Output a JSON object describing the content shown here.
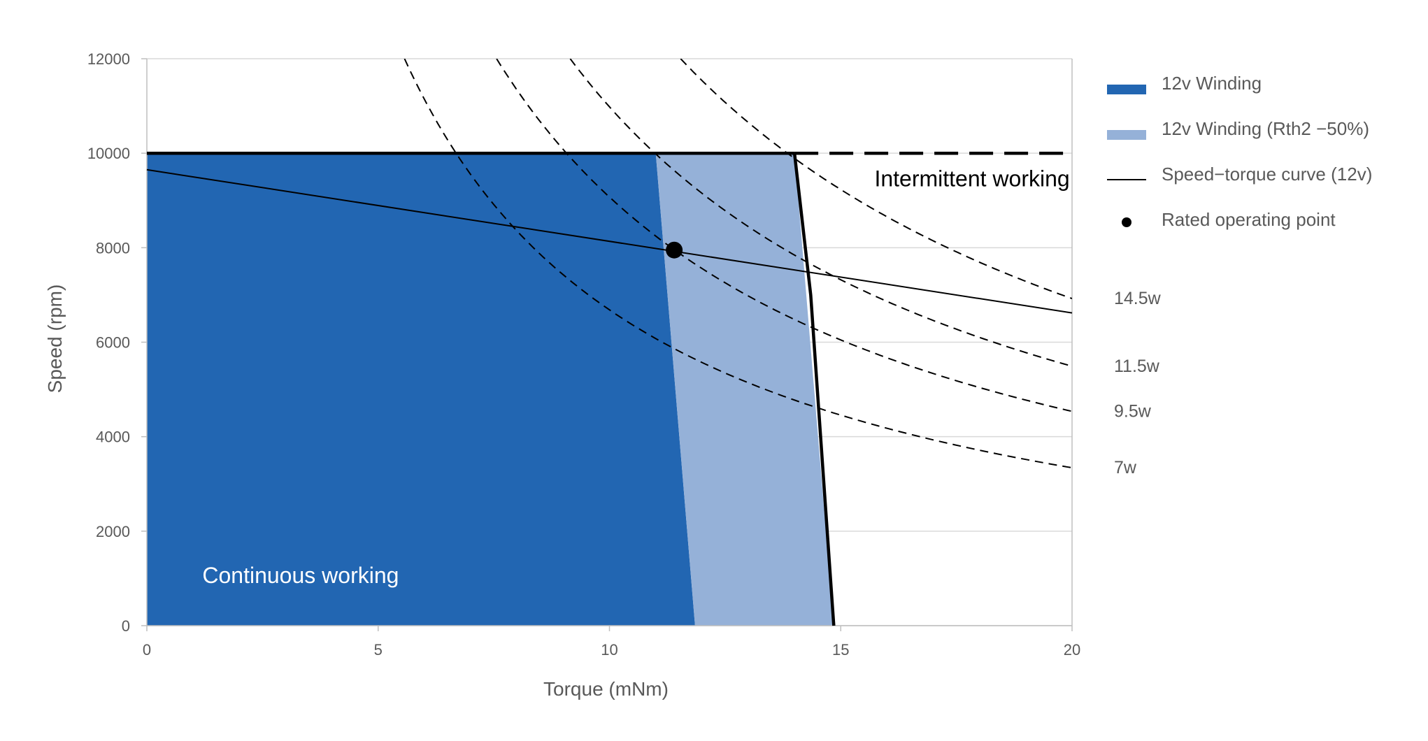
{
  "chart_data": {
    "type": "area",
    "xlabel": "Torque (mNm)",
    "ylabel": "Speed (rpm)",
    "xlim": [
      0,
      20
    ],
    "ylim": [
      0,
      12000
    ],
    "x_ticks": [
      0,
      5,
      10,
      15,
      20
    ],
    "y_ticks": [
      0,
      2000,
      4000,
      6000,
      8000,
      10000,
      12000
    ],
    "grid": "horizontal",
    "legend_position": "right",
    "colors": {
      "winding": "#2266b2",
      "winding_rth2": "#95b1d8",
      "curve": "#000000",
      "grid": "#d9d9d9",
      "text": "#595959"
    },
    "legend": [
      {
        "label": "12v Winding",
        "kind": "fill",
        "color": "#2266b2"
      },
      {
        "label": "12v Winding (Rth2 −50%)",
        "kind": "fill",
        "color": "#95b1d8"
      },
      {
        "label": "Speed−torque curve (12v)",
        "kind": "line",
        "color": "#000000"
      },
      {
        "label": "Rated operating point",
        "kind": "dot",
        "color": "#000000"
      }
    ],
    "regions": [
      {
        "name": "12v Winding",
        "color": "#2266b2",
        "points": [
          [
            0,
            0
          ],
          [
            0,
            10000
          ],
          [
            11,
            10000
          ],
          [
            11.85,
            0
          ]
        ]
      },
      {
        "name": "12v Winding (Rth2 −50%)",
        "color": "#95b1d8",
        "points": [
          [
            11,
            10000
          ],
          [
            14,
            10000
          ],
          [
            14.85,
            0
          ],
          [
            11.85,
            0
          ]
        ]
      }
    ],
    "boundary": {
      "speed_limit_solid": [
        [
          0,
          10000
        ],
        [
          14,
          10000
        ]
      ],
      "speed_limit_dashed": [
        [
          14,
          10000
        ],
        [
          20,
          10000
        ]
      ],
      "torque_limit": [
        [
          14,
          10000
        ],
        [
          14.35,
          7000
        ],
        [
          14.85,
          0
        ]
      ]
    },
    "speed_torque_curve": {
      "name": "Speed−torque curve (12v)",
      "points": [
        [
          0,
          9650
        ],
        [
          20,
          6620
        ]
      ]
    },
    "rated_point": {
      "x": 11.4,
      "y": 7950
    },
    "power_curves": [
      {
        "label": "7w",
        "power_w": 7
      },
      {
        "label": "9.5w",
        "power_w": 9.5
      },
      {
        "label": "11.5w",
        "power_w": 11.5
      },
      {
        "label": "14.5w",
        "power_w": 14.5
      }
    ],
    "annotations": [
      {
        "text": "Continuous working",
        "x": 1.2,
        "y": 900,
        "color": "#ffffff"
      },
      {
        "text": "Intermittent working",
        "x": 19.95,
        "y": 9300,
        "color": "#000000"
      }
    ]
  }
}
